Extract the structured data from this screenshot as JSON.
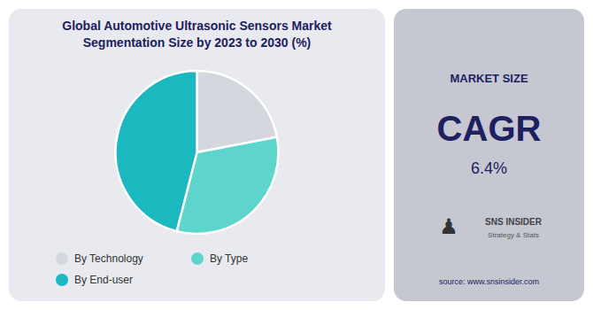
{
  "chart_data": {
    "type": "pie",
    "title": "Global Automotive Ultrasonic Sensors Market\nSegmentation Size by 2023 to 2030 (%)",
    "categories": [
      "By Technology",
      "By Type",
      "By End-user"
    ],
    "values": [
      22,
      32,
      46
    ],
    "colors": [
      "#d4d8de",
      "#5dd5cc",
      "#1cb8c0"
    ],
    "legend": "bottom",
    "annotations": [
      "MARKET SIZE",
      "CAGR",
      "6.4%",
      "♟",
      "SNS INSIDER",
      "Strategy & Stats",
      "source: www.snsinsider.com"
    ]
  }
}
